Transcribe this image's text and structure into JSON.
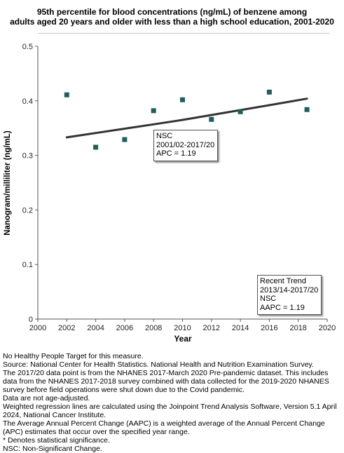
{
  "chart_data": {
    "type": "scatter",
    "title_lines": [
      "95th percentile for blood concentrations (ng/mL) of benzene among",
      "adults aged 20 years and older with less than a high school education, 2001-2020"
    ],
    "xlabel": "Year",
    "ylabel": "Nanogram/milliliter (ng/mL)",
    "xlim": [
      2000,
      2020
    ],
    "ylim": [
      0,
      0.5
    ],
    "x_ticks": [
      "2000",
      "2002",
      "2004",
      "2006",
      "2008",
      "2010",
      "2012",
      "2014",
      "2016",
      "2018",
      "2020"
    ],
    "y_ticks": [
      "0",
      "0.1",
      "0.2",
      "0.3",
      "0.4",
      "0.5"
    ],
    "grid": false,
    "series": [
      {
        "kind": "observed",
        "color": "#1f5f5b",
        "x": [
          2002,
          2004,
          2006,
          2008,
          2010,
          2012,
          2014,
          2016,
          2018.6
        ],
        "y": [
          0.411,
          0.315,
          0.329,
          0.382,
          0.402,
          0.366,
          0.38,
          0.416,
          0.384
        ]
      },
      {
        "kind": "trend",
        "color": "#333333",
        "x": [
          2002,
          2004,
          2006,
          2008,
          2010,
          2012,
          2014,
          2016,
          2018.6
        ],
        "y": [
          0.333,
          0.341,
          0.349,
          0.357,
          0.365,
          0.374,
          0.383,
          0.392,
          0.404
        ]
      }
    ],
    "annotations": [
      {
        "lines": [
          "NSC",
          "2001/02-2017/20",
          "APC =  1.19"
        ]
      },
      {
        "lines": [
          "Recent Trend",
          "2013/14-2017/20",
          "NSC",
          "AAPC =  1.19"
        ]
      }
    ]
  },
  "notes": [
    "No Healthy People Target for this measure.",
    "Source: National Center for Health Statistics. National Health and Nutrition Examination Survey.",
    "The 2017/20 data point is from the NHANES 2017-March 2020 Pre-pandemic dataset. This includes data from the NHANES 2017-2018 survey combined with data collected for the 2019-2020 NHANES survey before field operations were shut down due to the Covid pandemic.",
    "Data are not age-adjusted.",
    "Weighted regression lines are calculated using the Joinpoint Trend Analysis Software, Version 5.1 April 2024, National Cancer Institute.",
    "The Average Annual Percent Change (AAPC) is a weighted average of the Annual Percent Change (APC) estimates that occur over the specified year range.",
    "* Denotes statistical significance.",
    "NSC: Non-Significant Change."
  ]
}
